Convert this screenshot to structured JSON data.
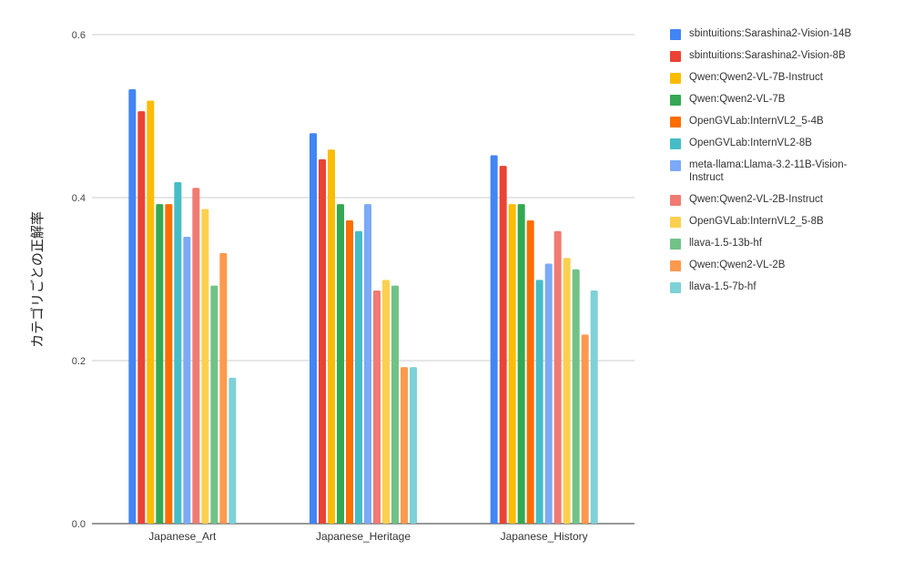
{
  "chart_data": {
    "type": "bar",
    "categories": [
      "Japanese_Art",
      "Japanese_Heritage",
      "Japanese_History"
    ],
    "ylabel": "カテゴリごとの正解率",
    "xlabel": "",
    "ylim": [
      0,
      0.6
    ],
    "yticks": [
      "0.0",
      "0.2",
      "0.4",
      "0.6"
    ],
    "yticks_values": [
      0,
      0.2,
      0.4,
      0.6
    ],
    "grid": true,
    "legend_position": "right",
    "series": [
      {
        "name": "sbintuitions:Sarashina2-Vision-14B",
        "color": "#4285F4",
        "values": [
          0.533,
          0.479,
          0.452
        ]
      },
      {
        "name": "sbintuitions:Sarashina2-Vision-8B",
        "color": "#EA4335",
        "values": [
          0.506,
          0.447,
          0.439
        ]
      },
      {
        "name": "Qwen:Qwen2-VL-7B-Instruct",
        "color": "#FBBC04",
        "values": [
          0.519,
          0.459,
          0.392
        ]
      },
      {
        "name": "Qwen:Qwen2-VL-7B",
        "color": "#34A853",
        "values": [
          0.392,
          0.392,
          0.392
        ]
      },
      {
        "name": "OpenGVLab:InternVL2_5-4B",
        "color": "#FF6D01",
        "values": [
          0.392,
          0.372,
          0.372
        ]
      },
      {
        "name": "OpenGVLab:InternVL2-8B",
        "color": "#46BDC6",
        "values": [
          0.419,
          0.359,
          0.299
        ]
      },
      {
        "name": "meta-llama:Llama-3.2-11B-Vision-Instruct",
        "color": "#7BAAF7",
        "values": [
          0.352,
          0.392,
          0.319
        ]
      },
      {
        "name": "Qwen:Qwen2-VL-2B-Instruct",
        "color": "#F07B72",
        "values": [
          0.412,
          0.286,
          0.359
        ]
      },
      {
        "name": "OpenGVLab:InternVL2_5-8B",
        "color": "#FCD04F",
        "values": [
          0.386,
          0.299,
          0.326
        ]
      },
      {
        "name": "llava-1.5-13b-hf",
        "color": "#71C287",
        "values": [
          0.292,
          0.292,
          0.312
        ]
      },
      {
        "name": "Qwen:Qwen2-VL-2B",
        "color": "#FF994D",
        "values": [
          0.332,
          0.192,
          0.232
        ]
      },
      {
        "name": "llava-1.5-7b-hf",
        "color": "#7ED1D7",
        "values": [
          0.179,
          0.192,
          0.286
        ]
      }
    ]
  }
}
